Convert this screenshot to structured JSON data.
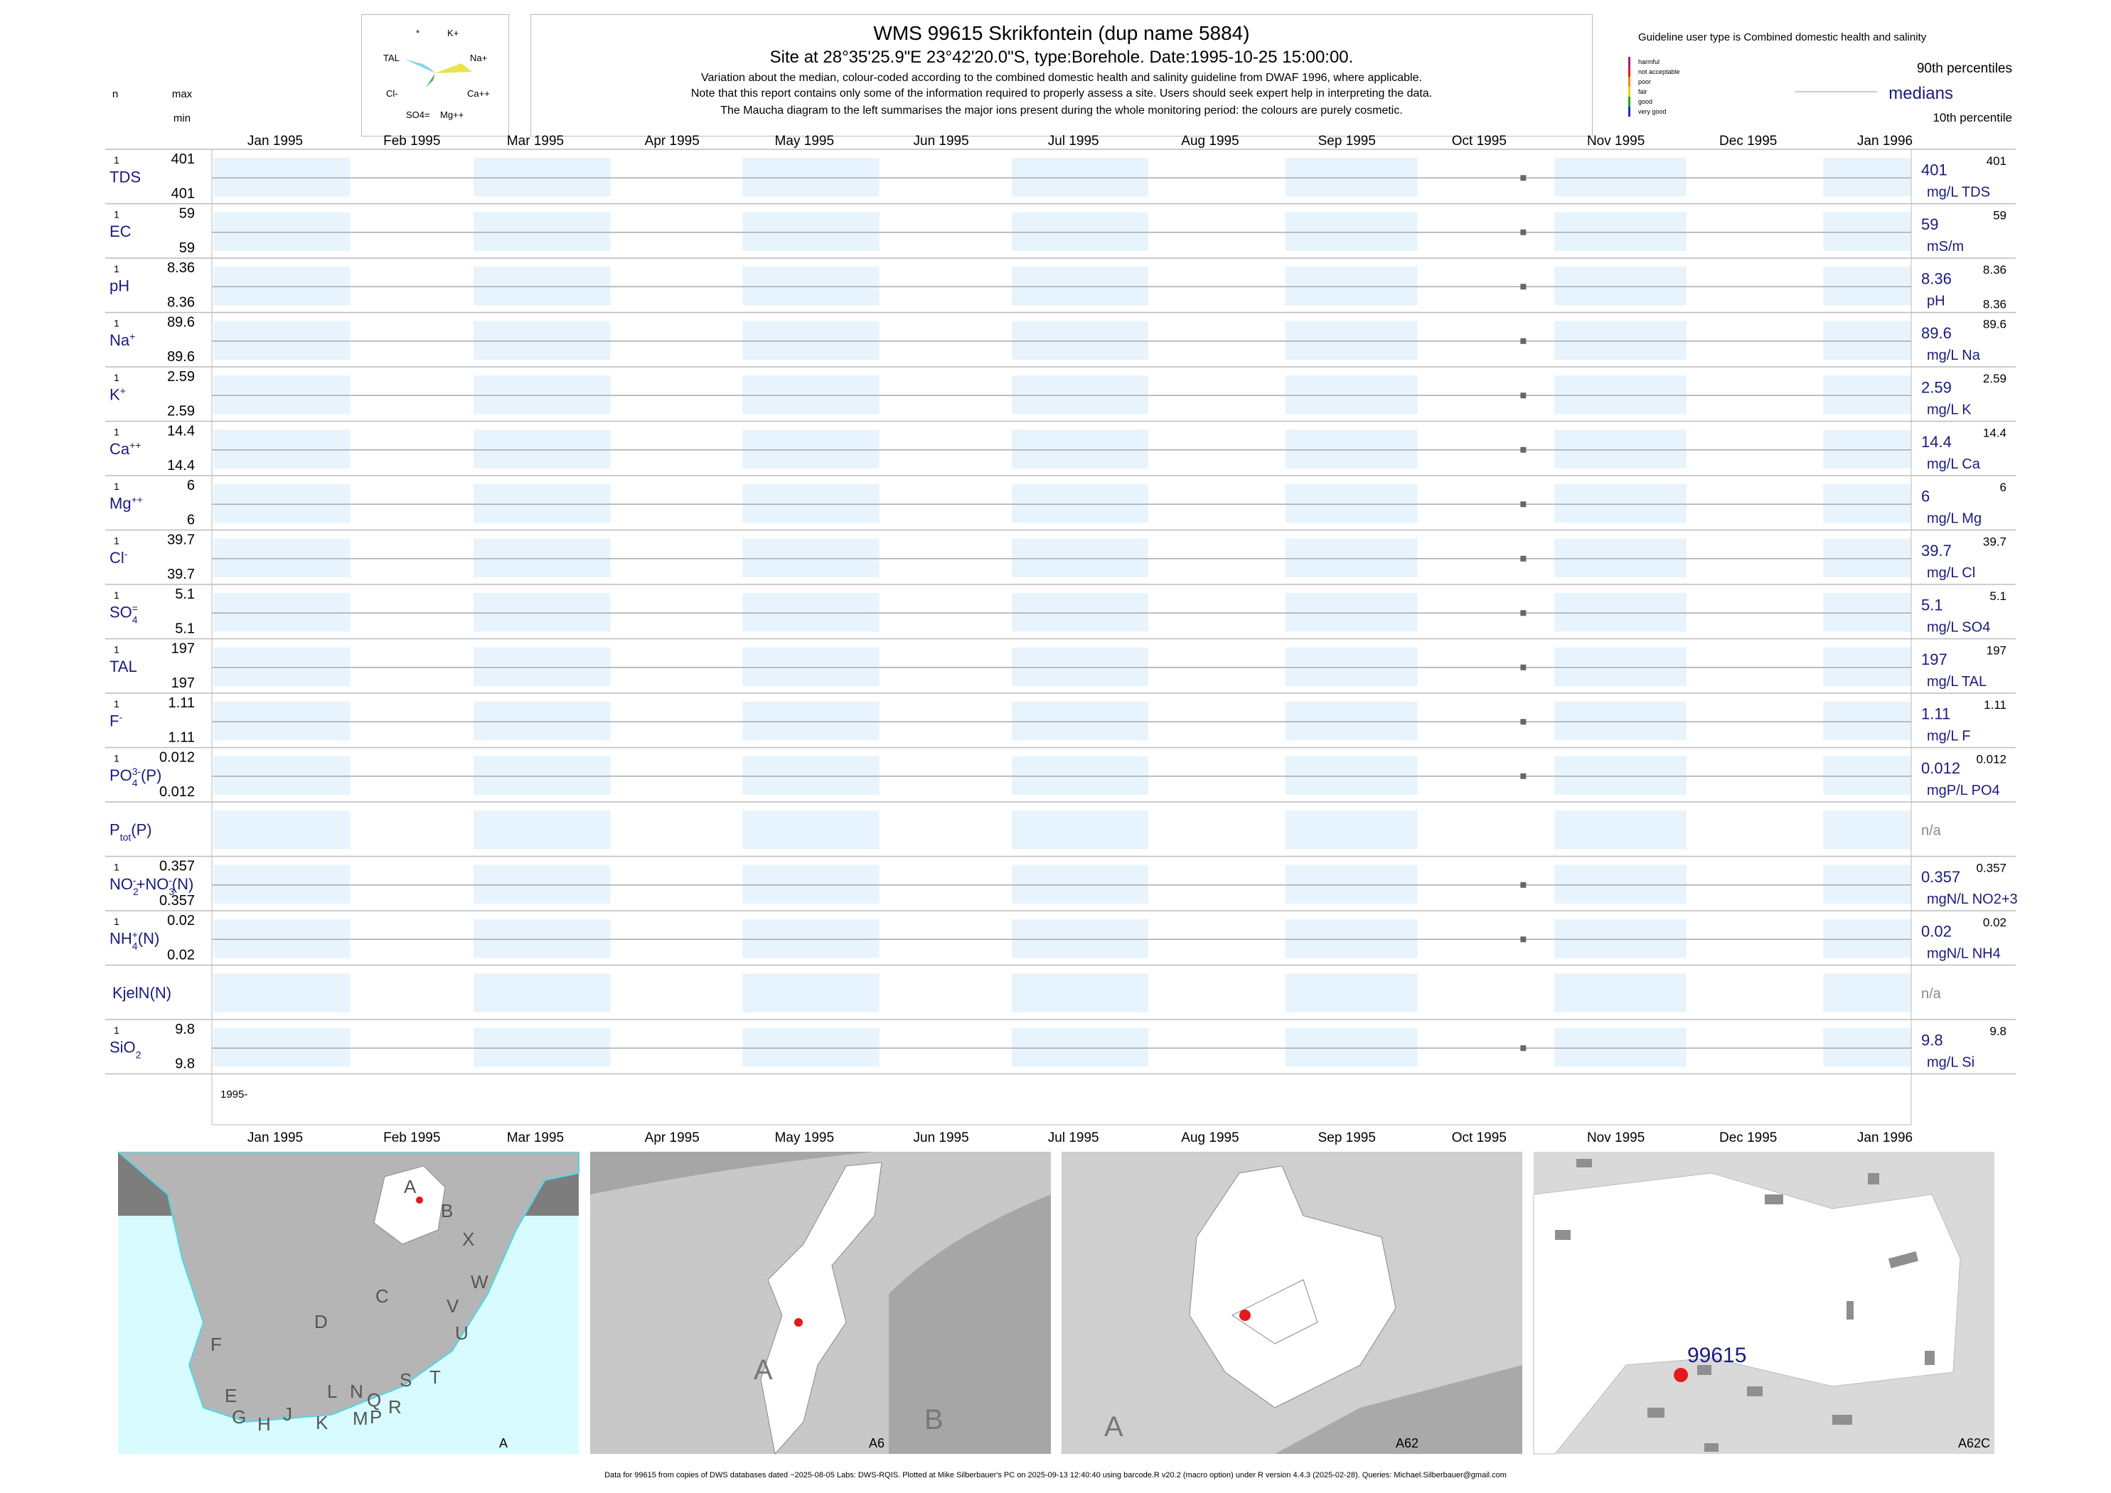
{
  "header": {
    "title": "WMS 99615  Skrikfontein (dup name 5884)",
    "subtitle": "Site at 28°35'25.9\"E 23°42'20.0\"S, type:Borehole. Date:1995-10-25 15:00:00.",
    "notes": [
      "Variation about the median,  colour-coded according to the combined domestic health and salinity guideline from DWAF 1996, where applicable.",
      "Note that this report contains only some of the information required to properly assess a site. Users should seek expert help in interpreting the data.",
      "The Maucha diagram to the left summarises the major ions present during the whole monitoring period: the colours are purely cosmetic."
    ],
    "col_n": "n",
    "col_max": "max",
    "col_min": "min"
  },
  "maucha": {
    "labels": [
      "*",
      "K+",
      "TAL",
      "Na+",
      "Cl-",
      "Ca++",
      "SO4=",
      "Mg++"
    ]
  },
  "legend": {
    "guideline": "Guideline user type is Combined domestic health and salinity",
    "classes": [
      {
        "label": "harmful",
        "color": "#a0207c"
      },
      {
        "label": "not acceptable",
        "color": "#d62020"
      },
      {
        "label": "poor",
        "color": "#f08a1c"
      },
      {
        "label": "fair",
        "color": "#e6d21a"
      },
      {
        "label": "good",
        "color": "#29a329"
      },
      {
        "label": "very good",
        "color": "#1c2fa8"
      }
    ],
    "p90": "90th percentiles",
    "medians": "medians",
    "p10": "10th percentile"
  },
  "chart_data": {
    "type": "scatter",
    "months": [
      "Jan 1995",
      "Feb 1995",
      "Mar 1995",
      "Apr 1995",
      "May 1995",
      "Jun 1995",
      "Jul 1995",
      "Aug 1995",
      "Sep 1995",
      "Oct 1995",
      "Nov 1995",
      "Dec 1995",
      "Jan 1996"
    ],
    "year_label": "1995-",
    "sample_date": "1995-10-25",
    "rows": [
      {
        "name": "TDS",
        "n": "1",
        "max": "401",
        "min": "401",
        "median": "401",
        "unit": "mg/L TDS",
        "p90": "401",
        "p10": ""
      },
      {
        "name": "EC",
        "n": "1",
        "max": "59",
        "min": "59",
        "median": "59",
        "unit": "mS/m",
        "p90": "59",
        "p10": ""
      },
      {
        "name": "pH",
        "n": "1",
        "max": "8.36",
        "min": "8.36",
        "median": "8.36",
        "unit": "pH",
        "p90": "8.36",
        "p10": "8.36"
      },
      {
        "name": "Na+",
        "n": "1",
        "max": "89.6",
        "min": "89.6",
        "median": "89.6",
        "unit": "mg/L Na",
        "p90": "89.6",
        "p10": ""
      },
      {
        "name": "K+",
        "n": "1",
        "max": "2.59",
        "min": "2.59",
        "median": "2.59",
        "unit": "mg/L K",
        "p90": "2.59",
        "p10": ""
      },
      {
        "name": "Ca++",
        "n": "1",
        "max": "14.4",
        "min": "14.4",
        "median": "14.4",
        "unit": "mg/L Ca",
        "p90": "14.4",
        "p10": ""
      },
      {
        "name": "Mg++",
        "n": "1",
        "max": "6",
        "min": "6",
        "median": "6",
        "unit": "mg/L Mg",
        "p90": "6",
        "p10": ""
      },
      {
        "name": "Cl-",
        "n": "1",
        "max": "39.7",
        "min": "39.7",
        "median": "39.7",
        "unit": "mg/L Cl",
        "p90": "39.7",
        "p10": ""
      },
      {
        "name": "SO4=",
        "n": "1",
        "max": "5.1",
        "min": "5.1",
        "median": "5.1",
        "unit": "mg/L SO4",
        "p90": "5.1",
        "p10": ""
      },
      {
        "name": "TAL",
        "n": "1",
        "max": "197",
        "min": "197",
        "median": "197",
        "unit": "mg/L TAL",
        "p90": "197",
        "p10": ""
      },
      {
        "name": "F-",
        "n": "1",
        "max": "1.11",
        "min": "1.11",
        "median": "1.11",
        "unit": "mg/L F",
        "p90": "1.11",
        "p10": ""
      },
      {
        "name": "PO43-(P)",
        "n": "1",
        "max": "0.012",
        "min": "0.012",
        "median": "0.012",
        "unit": "mgP/L PO4",
        "p90": "0.012",
        "p10": ""
      },
      {
        "name": "Ptot(P)",
        "n": "",
        "max": "",
        "min": "",
        "median": "n/a",
        "unit": "",
        "p90": "",
        "p10": ""
      },
      {
        "name": "NO2-+NO3-(N)",
        "n": "1",
        "max": "0.357",
        "min": "0.357",
        "median": "0.357",
        "unit": "mgN/L NO2+3",
        "p90": "0.357",
        "p10": ""
      },
      {
        "name": "NH4+(N)",
        "n": "1",
        "max": "0.02",
        "min": "0.02",
        "median": "0.02",
        "unit": "mgN/L NH4",
        "p90": "0.02",
        "p10": ""
      },
      {
        "name": "KjelN(N)",
        "n": "",
        "max": "",
        "min": "",
        "median": "n/a",
        "unit": "",
        "p90": "",
        "p10": ""
      },
      {
        "name": "SiO2",
        "n": "1",
        "max": "9.8",
        "min": "9.8",
        "median": "9.8",
        "unit": "mg/L Si",
        "p90": "9.8",
        "p10": ""
      }
    ]
  },
  "maps": [
    {
      "label": "A",
      "regions": [
        "A",
        "B",
        "X",
        "W",
        "C",
        "V",
        "U",
        "D",
        "T",
        "F",
        "E",
        "S",
        "R",
        "N",
        "Q",
        "L",
        "P",
        "M",
        "J",
        "K",
        "H",
        "G"
      ]
    },
    {
      "label": "A6",
      "regions": [
        "A",
        "B"
      ]
    },
    {
      "label": "A62",
      "regions": [
        "A"
      ]
    },
    {
      "label": "A62C",
      "site": "99615"
    }
  ],
  "footer": "Data for 99615 from copies of DWS databases dated ~2025-08-05 Labs: DWS-RQIS. Plotted at Mike Silberbauer's PC on 2025-09-13 12:40:40 using barcode.R v20.2 (macro option) under R version 4.4.3 (2025-02-28). Queries: Michael.Silberbauer@gmail.com"
}
